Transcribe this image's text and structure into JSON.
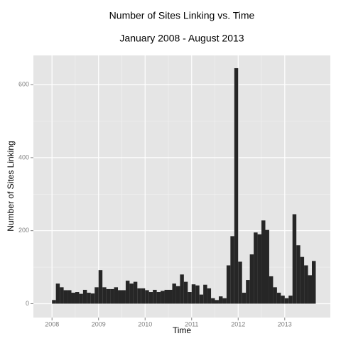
{
  "chart_data": {
    "type": "histogram",
    "title": "Number of Sites Linking vs. Time",
    "subtitle": "January 2008 - August 2013",
    "x_label": "Time",
    "y_label": "Number of Sites Linking",
    "bins": [
      2008,
      2008.0833,
      2008.1667,
      2008.25,
      2008.3333,
      2008.4167,
      2008.5,
      2008.5833,
      2008.6667,
      2008.75,
      2008.8333,
      2008.9167,
      2009,
      2009.0833,
      2009.1667,
      2009.25,
      2009.3333,
      2009.4167,
      2009.5,
      2009.5833,
      2009.6667,
      2009.75,
      2009.8333,
      2009.9167,
      2010,
      2010.0833,
      2010.1667,
      2010.25,
      2010.3333,
      2010.4167,
      2010.5,
      2010.5833,
      2010.6667,
      2010.75,
      2010.8333,
      2010.9167,
      2011,
      2011.0833,
      2011.1667,
      2011.25,
      2011.3333,
      2011.4167,
      2011.5,
      2011.5833,
      2011.6667,
      2011.75,
      2011.8333,
      2011.9167,
      2012,
      2012.0833,
      2012.1667,
      2012.25,
      2012.3333,
      2012.4167,
      2012.5,
      2012.5833,
      2012.6667,
      2012.75,
      2012.8333,
      2012.9167,
      2013,
      2013.0833,
      2013.1667,
      2013.25,
      2013.3333,
      2013.4167,
      2013.5,
      2013.5833,
      2013.6667
    ],
    "values": [
      10,
      55,
      45,
      37,
      37,
      30,
      32,
      27,
      38,
      30,
      28,
      45,
      92,
      45,
      40,
      40,
      45,
      37,
      37,
      63,
      55,
      60,
      42,
      42,
      37,
      32,
      38,
      32,
      35,
      38,
      38,
      55,
      48,
      80,
      60,
      32,
      53,
      50,
      25,
      52,
      42,
      15,
      10,
      20,
      15,
      105,
      185,
      645,
      115,
      30,
      65,
      135,
      195,
      190,
      228,
      202,
      75,
      45,
      30,
      22,
      15,
      22,
      245,
      160,
      128,
      105,
      78,
      117
    ],
    "color": "#262626",
    "xlim": [
      2007.6,
      2013.98
    ],
    "xticks": [
      2008,
      2009,
      2010,
      2011,
      2012,
      2013
    ],
    "ylim": [
      -38,
      680
    ],
    "yticks": [
      0,
      200,
      400,
      600
    ],
    "grid": true
  }
}
